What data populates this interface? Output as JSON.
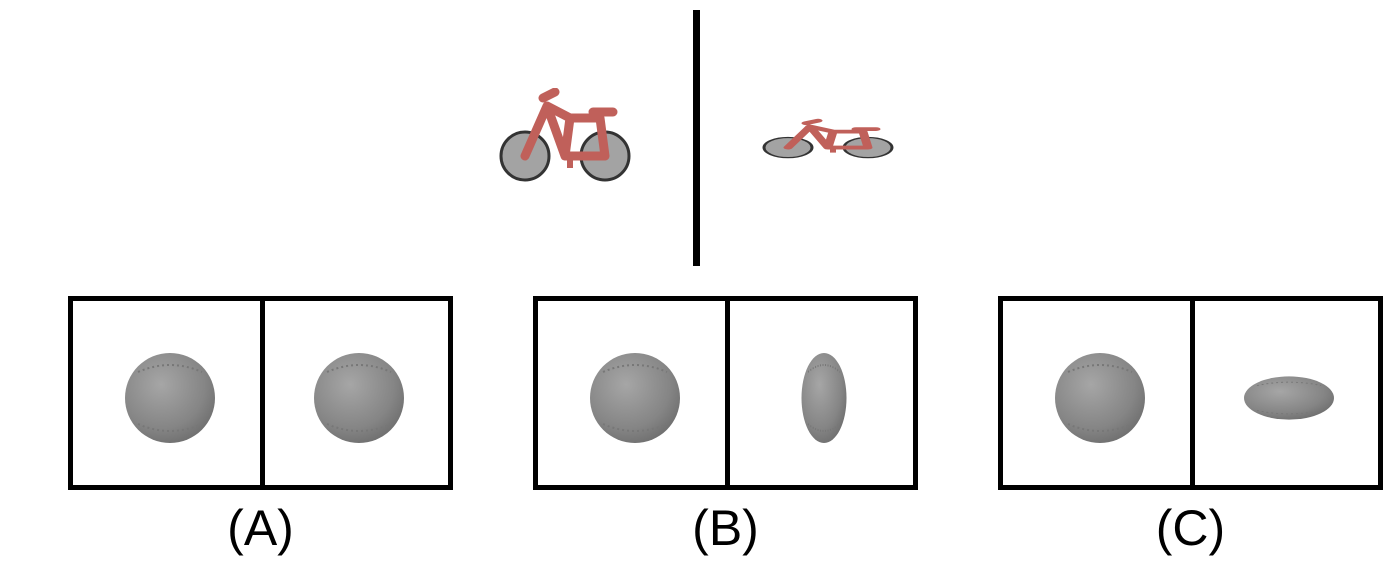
{
  "reference": {
    "left_image": "bicycle-side-view",
    "right_image": "bicycle-squashed-view"
  },
  "options": [
    {
      "label": "(A)",
      "left": "baseball-round",
      "right": "baseball-round"
    },
    {
      "label": "(B)",
      "left": "baseball-round",
      "right": "baseball-vertically-stretched"
    },
    {
      "label": "(C)",
      "left": "baseball-round",
      "right": "baseball-horizontally-flattened"
    }
  ],
  "colors": {
    "bike": "#c0605a",
    "ball": "#888888",
    "wheel": "#999999"
  }
}
